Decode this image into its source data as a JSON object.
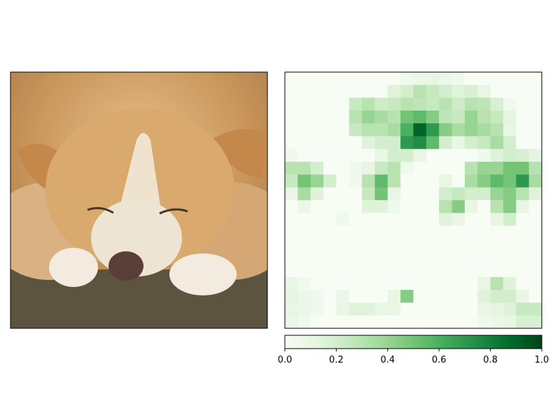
{
  "chart_data": [
    {
      "type": "image",
      "content": "photo of a light brown and white dog lying down with eyes closed, head resting on its front paws",
      "axes_visible": false
    },
    {
      "type": "heatmap",
      "colormap": "Greens",
      "grid_size": [
        20,
        20
      ],
      "axes_visible": false,
      "colorbar": {
        "orientation": "horizontal",
        "range": [
          0.0,
          1.0
        ],
        "ticks": [
          0.0,
          0.2,
          0.4,
          0.6,
          0.8,
          1.0
        ],
        "tick_labels": [
          "0.0",
          "0.2",
          "0.4",
          "0.6",
          "0.8",
          "1.0"
        ]
      },
      "values": [
        [
          0.0,
          0.0,
          0.0,
          0.0,
          0.0,
          0.0,
          0.0,
          0.0,
          0.0,
          0.05,
          0.08,
          0.1,
          0.08,
          0.05,
          0.0,
          0.0,
          0.0,
          0.0,
          0.0,
          0.0
        ],
        [
          0.0,
          0.0,
          0.0,
          0.0,
          0.0,
          0.0,
          0.0,
          0.0,
          0.15,
          0.2,
          0.3,
          0.25,
          0.2,
          0.15,
          0.18,
          0.1,
          0.0,
          0.0,
          0.0,
          0.0
        ],
        [
          0.0,
          0.0,
          0.0,
          0.0,
          0.0,
          0.25,
          0.3,
          0.22,
          0.25,
          0.3,
          0.28,
          0.25,
          0.3,
          0.22,
          0.3,
          0.28,
          0.18,
          0.05,
          0.0,
          0.0
        ],
        [
          0.0,
          0.0,
          0.0,
          0.0,
          0.0,
          0.3,
          0.4,
          0.35,
          0.3,
          0.5,
          0.55,
          0.45,
          0.28,
          0.25,
          0.4,
          0.3,
          0.25,
          0.12,
          0.0,
          0.0
        ],
        [
          0.0,
          0.0,
          0.0,
          0.0,
          0.0,
          0.25,
          0.3,
          0.3,
          0.35,
          0.6,
          0.9,
          0.7,
          0.45,
          0.35,
          0.4,
          0.35,
          0.3,
          0.1,
          0.0,
          0.0
        ],
        [
          0.0,
          0.0,
          0.0,
          0.0,
          0.0,
          0.0,
          0.15,
          0.2,
          0.2,
          0.7,
          0.75,
          0.55,
          0.2,
          0.1,
          0.2,
          0.25,
          0.35,
          0.2,
          0.0,
          0.0
        ],
        [
          0.05,
          0.0,
          0.0,
          0.0,
          0.0,
          0.0,
          0.0,
          0.1,
          0.2,
          0.2,
          0.1,
          0.0,
          0.0,
          0.0,
          0.0,
          0.05,
          0.15,
          0.2,
          0.18,
          0.12
        ],
        [
          0.3,
          0.3,
          0.2,
          0.0,
          0.0,
          0.05,
          0.1,
          0.25,
          0.3,
          0.05,
          0.0,
          0.0,
          0.0,
          0.0,
          0.3,
          0.4,
          0.4,
          0.5,
          0.5,
          0.3
        ],
        [
          0.25,
          0.5,
          0.4,
          0.2,
          0.0,
          0.05,
          0.3,
          0.55,
          0.3,
          0.0,
          0.0,
          0.0,
          0.1,
          0.0,
          0.35,
          0.45,
          0.55,
          0.5,
          0.7,
          0.35
        ],
        [
          0.1,
          0.35,
          0.15,
          0.0,
          0.0,
          0.0,
          0.25,
          0.5,
          0.1,
          0.0,
          0.0,
          0.0,
          0.2,
          0.25,
          0.2,
          0.2,
          0.4,
          0.45,
          0.3,
          0.15
        ],
        [
          0.0,
          0.08,
          0.0,
          0.0,
          0.0,
          0.0,
          0.15,
          0.15,
          0.05,
          0.0,
          0.0,
          0.0,
          0.3,
          0.45,
          0.1,
          0.0,
          0.3,
          0.45,
          0.1,
          0.0
        ],
        [
          0.0,
          0.0,
          0.0,
          0.0,
          0.05,
          0.0,
          0.0,
          0.0,
          0.0,
          0.0,
          0.0,
          0.0,
          0.15,
          0.1,
          0.0,
          0.0,
          0.1,
          0.2,
          0.0,
          0.0
        ],
        [
          0.0,
          0.0,
          0.0,
          0.0,
          0.0,
          0.0,
          0.0,
          0.0,
          0.0,
          0.0,
          0.0,
          0.0,
          0.0,
          0.0,
          0.0,
          0.0,
          0.0,
          0.0,
          0.0,
          0.0
        ],
        [
          0.0,
          0.0,
          0.0,
          0.0,
          0.0,
          0.0,
          0.0,
          0.0,
          0.0,
          0.0,
          0.0,
          0.0,
          0.0,
          0.0,
          0.0,
          0.0,
          0.0,
          0.0,
          0.0,
          0.0
        ],
        [
          0.0,
          0.0,
          0.0,
          0.0,
          0.0,
          0.0,
          0.0,
          0.0,
          0.0,
          0.0,
          0.0,
          0.0,
          0.0,
          0.0,
          0.0,
          0.0,
          0.0,
          0.0,
          0.0,
          0.0
        ],
        [
          0.0,
          0.0,
          0.0,
          0.0,
          0.0,
          0.0,
          0.0,
          0.0,
          0.0,
          0.0,
          0.0,
          0.0,
          0.0,
          0.0,
          0.0,
          0.0,
          0.0,
          0.0,
          0.0,
          0.0
        ],
        [
          0.1,
          0.05,
          0.0,
          0.0,
          0.0,
          0.0,
          0.0,
          0.0,
          0.0,
          0.0,
          0.0,
          0.0,
          0.0,
          0.0,
          0.0,
          0.1,
          0.3,
          0.15,
          0.0,
          0.0
        ],
        [
          0.12,
          0.08,
          0.05,
          0.0,
          0.08,
          0.0,
          0.0,
          0.0,
          0.1,
          0.45,
          0.0,
          0.0,
          0.0,
          0.0,
          0.0,
          0.15,
          0.2,
          0.2,
          0.1,
          0.0
        ],
        [
          0.1,
          0.08,
          0.05,
          0.0,
          0.1,
          0.15,
          0.15,
          0.1,
          0.1,
          0.0,
          0.0,
          0.0,
          0.0,
          0.0,
          0.0,
          0.1,
          0.12,
          0.15,
          0.25,
          0.25
        ],
        [
          0.08,
          0.05,
          0.0,
          0.0,
          0.0,
          0.0,
          0.0,
          0.0,
          0.0,
          0.0,
          0.0,
          0.0,
          0.0,
          0.0,
          0.0,
          0.05,
          0.08,
          0.1,
          0.18,
          0.18
        ]
      ]
    }
  ]
}
